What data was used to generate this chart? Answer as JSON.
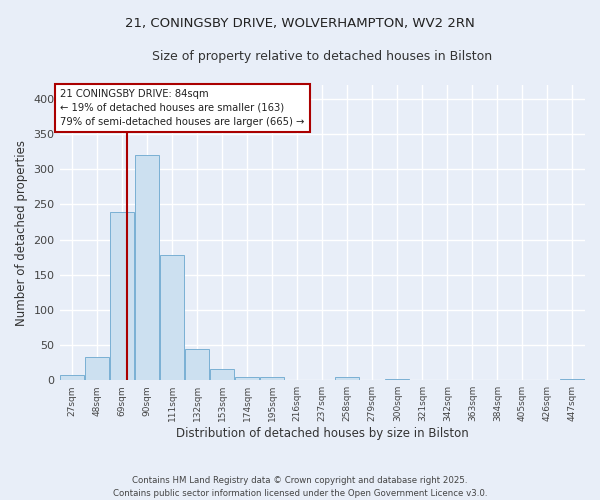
{
  "title_line1": "21, CONINGSBY DRIVE, WOLVERHAMPTON, WV2 2RN",
  "title_line2": "Size of property relative to detached houses in Bilston",
  "xlabel": "Distribution of detached houses by size in Bilston",
  "ylabel": "Number of detached properties",
  "bin_edges": [
    27,
    48,
    69,
    90,
    111,
    132,
    153,
    174,
    195,
    216,
    237,
    258,
    279,
    300,
    321,
    342,
    363,
    384,
    405,
    426,
    447
  ],
  "bar_values": [
    7,
    33,
    240,
    320,
    178,
    45,
    16,
    5,
    5,
    0,
    0,
    4,
    0,
    2,
    0,
    0,
    0,
    0,
    0,
    0,
    2
  ],
  "bar_color": "#cce0f0",
  "bar_edge_color": "#7ab0d4",
  "background_color": "#e8eef8",
  "grid_color": "#ffffff",
  "red_line_x": 84,
  "annotation_line1": "21 CONINGSBY DRIVE: 84sqm",
  "annotation_line2": "← 19% of detached houses are smaller (163)",
  "annotation_line3": "79% of semi-detached houses are larger (665) →",
  "annotation_box_color": "#ffffff",
  "annotation_border_color": "#aa0000",
  "ylim": [
    0,
    420
  ],
  "yticks": [
    0,
    50,
    100,
    150,
    200,
    250,
    300,
    350,
    400
  ],
  "footnote_line1": "Contains HM Land Registry data © Crown copyright and database right 2025.",
  "footnote_line2": "Contains public sector information licensed under the Open Government Licence v3.0.",
  "tick_labels": [
    "27sqm",
    "48sqm",
    "69sqm",
    "90sqm",
    "111sqm",
    "132sqm",
    "153sqm",
    "174sqm",
    "195sqm",
    "216sqm",
    "237sqm",
    "258sqm",
    "279sqm",
    "300sqm",
    "321sqm",
    "342sqm",
    "363sqm",
    "384sqm",
    "405sqm",
    "426sqm",
    "447sqm"
  ]
}
